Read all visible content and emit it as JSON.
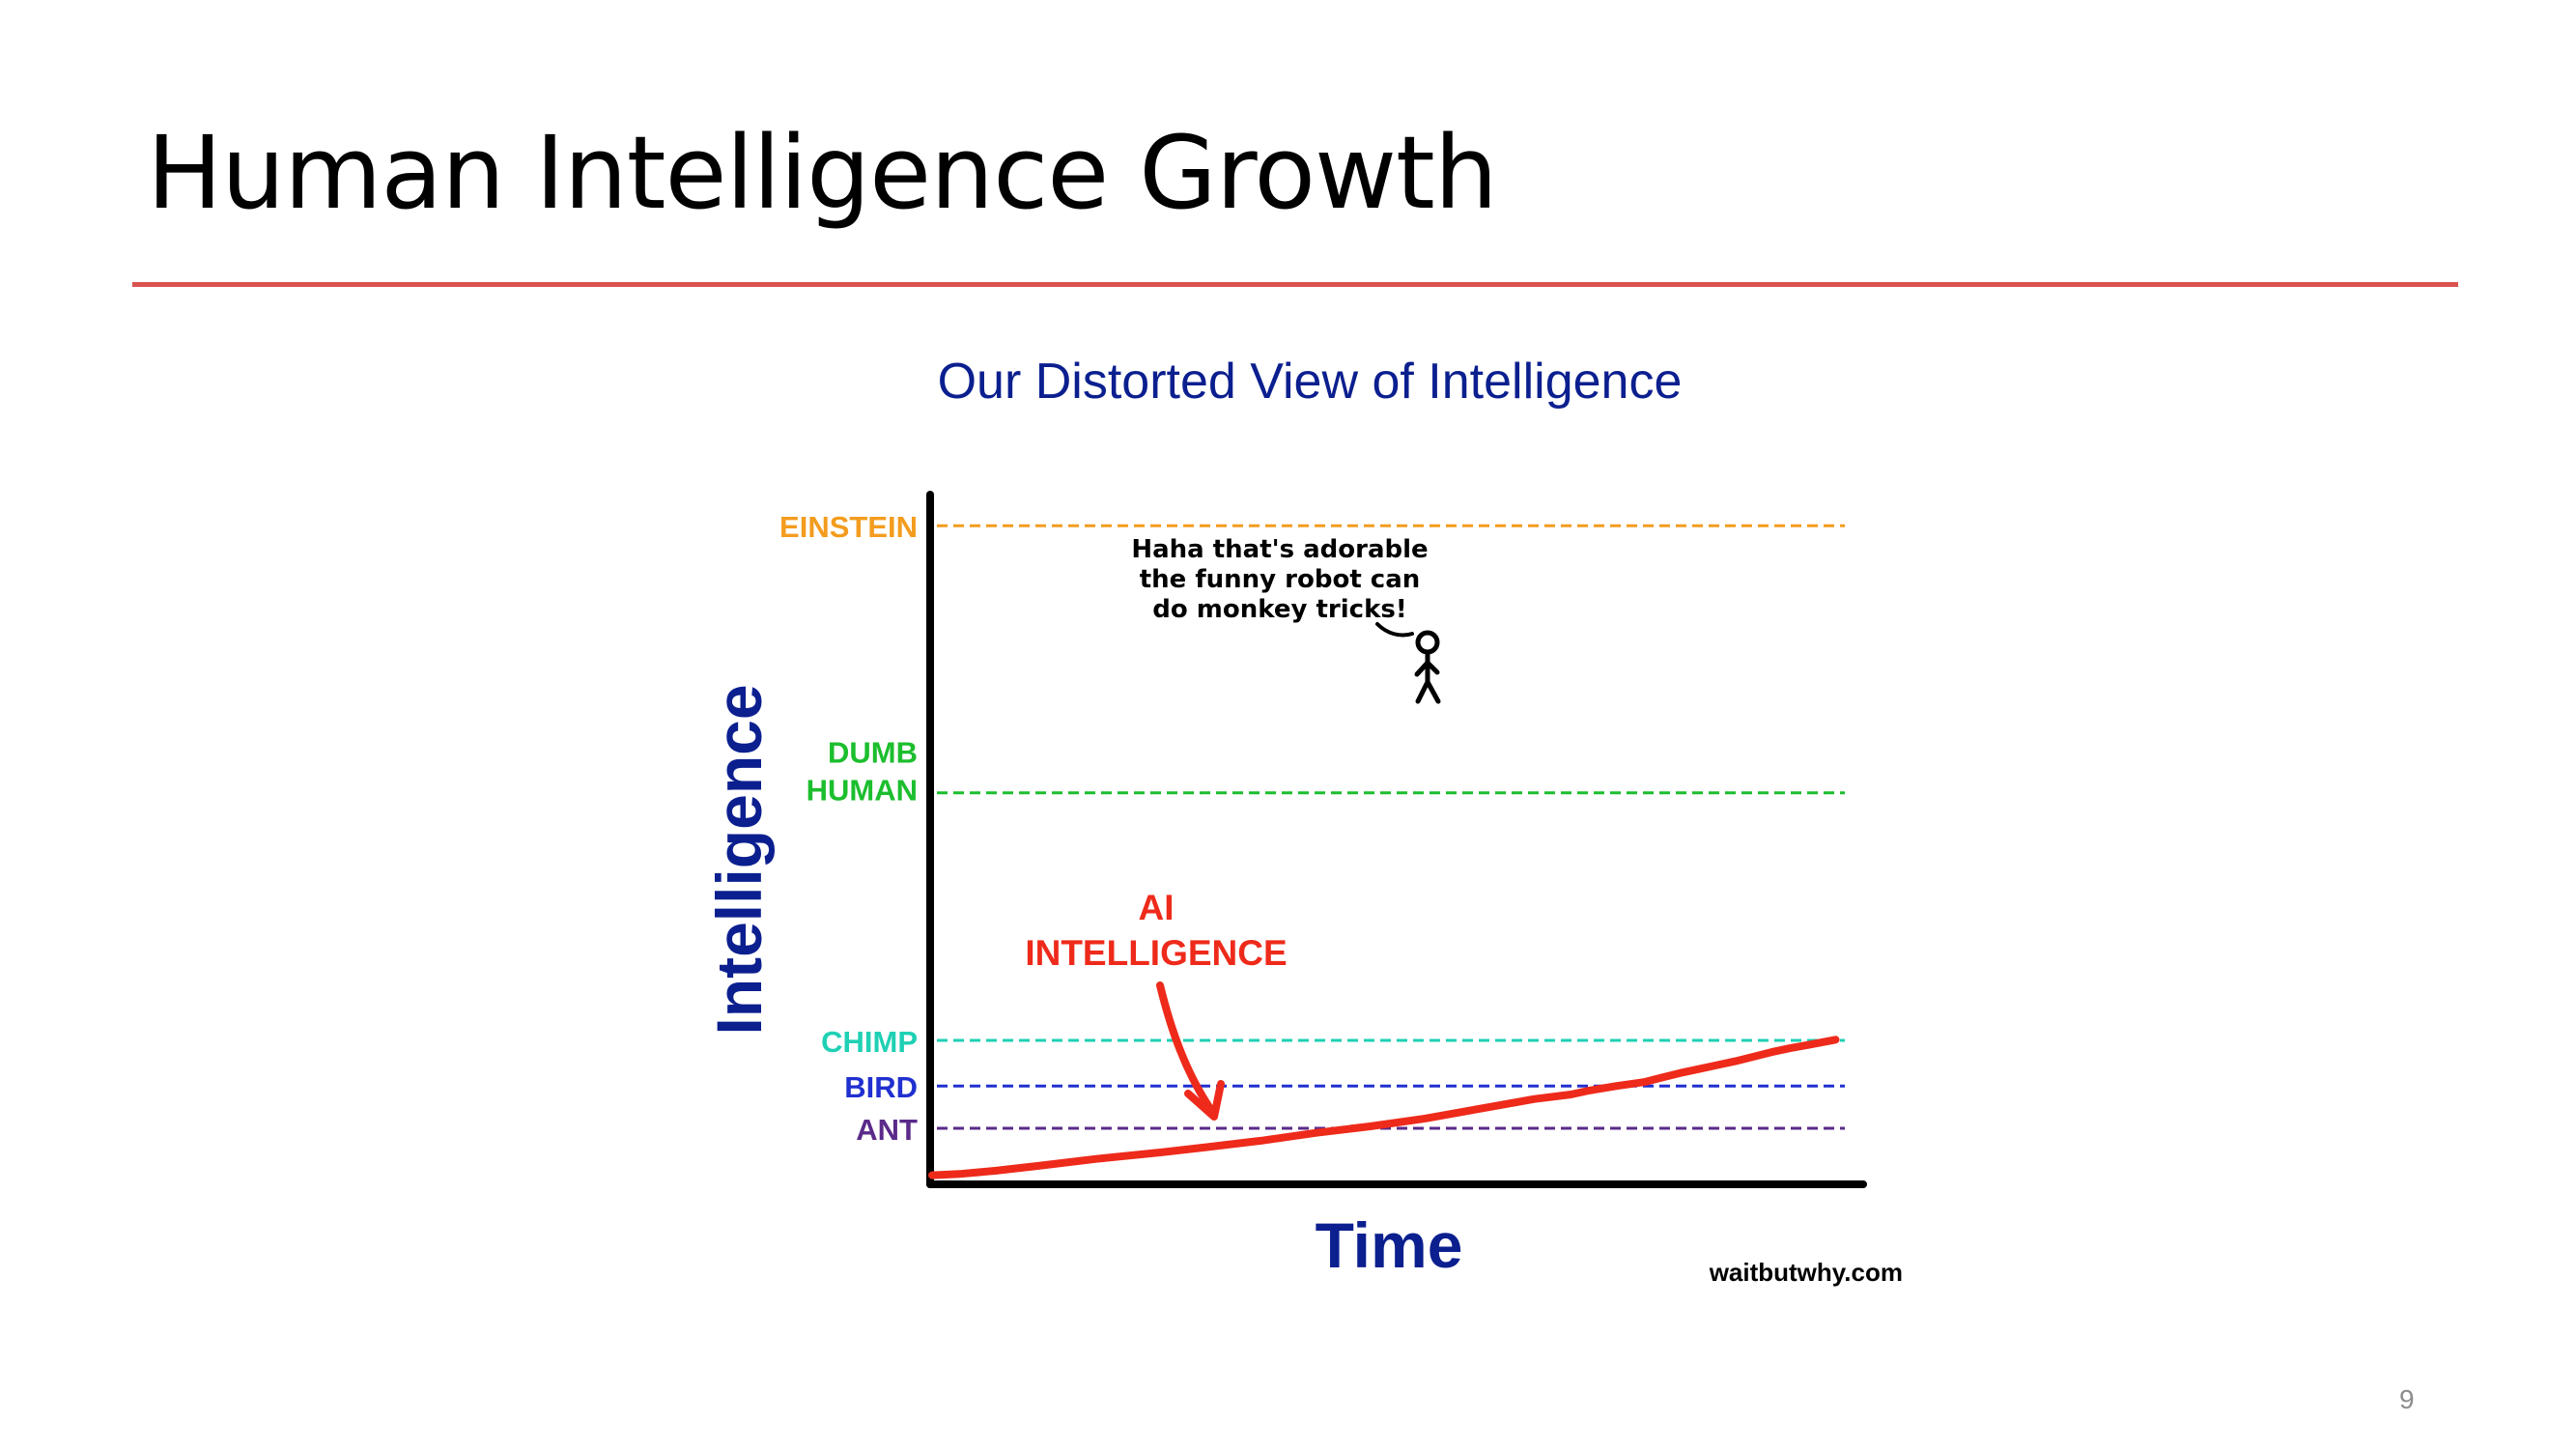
{
  "slide": {
    "title": "Human Intelligence Growth",
    "page_number": "9",
    "rule_color": "#d9534f"
  },
  "chart_data": {
    "type": "line",
    "title": "Our Distorted View of Intelligence",
    "xlabel": "Time",
    "ylabel": "Intelligence",
    "credit": "waitbutwhy.com",
    "title_color": "#0b1f8f",
    "axis_color": "#000000",
    "reference_lines": [
      {
        "label": "EINSTEIN",
        "color": "#f39c1e",
        "value": 100
      },
      {
        "label": "DUMB HUMAN",
        "lines": [
          "DUMB",
          "HUMAN"
        ],
        "color": "#1cbe2e",
        "value": 59
      },
      {
        "label": "CHIMP",
        "color": "#1fd0b4",
        "value": 21
      },
      {
        "label": "BIRD",
        "color": "#2030d0",
        "value": 14
      },
      {
        "label": "ANT",
        "color": "#5a2a8a",
        "value": 7.5
      }
    ],
    "ylim": [
      -0.5,
      103
    ],
    "xlim": [
      0,
      100
    ],
    "series": [
      {
        "name": "AI INTELLIGENCE",
        "color": "#ee2a1b",
        "x": [
          0,
          3,
          7,
          12,
          18,
          25,
          30,
          36,
          42,
          48,
          54,
          58,
          62,
          66,
          70,
          72,
          75,
          78,
          80,
          82,
          84,
          86,
          88,
          90,
          92,
          94,
          96,
          99
        ],
        "y": [
          0.3,
          0.5,
          1.0,
          1.8,
          2.8,
          3.8,
          4.6,
          5.6,
          6.8,
          7.8,
          9.0,
          10.0,
          11.0,
          12.0,
          12.7,
          13.3,
          14.0,
          14.6,
          15.3,
          16.0,
          16.6,
          17.2,
          17.8,
          18.5,
          19.2,
          19.8,
          20.3,
          21.1
        ]
      }
    ],
    "annotation": {
      "label_lines": [
        "AI",
        "INTELLIGENCE"
      ],
      "color": "#ee2a1b"
    },
    "speech_bubble": {
      "lines": [
        "Haha that's adorable",
        "the funny robot can",
        "do monkey tricks!"
      ]
    }
  }
}
